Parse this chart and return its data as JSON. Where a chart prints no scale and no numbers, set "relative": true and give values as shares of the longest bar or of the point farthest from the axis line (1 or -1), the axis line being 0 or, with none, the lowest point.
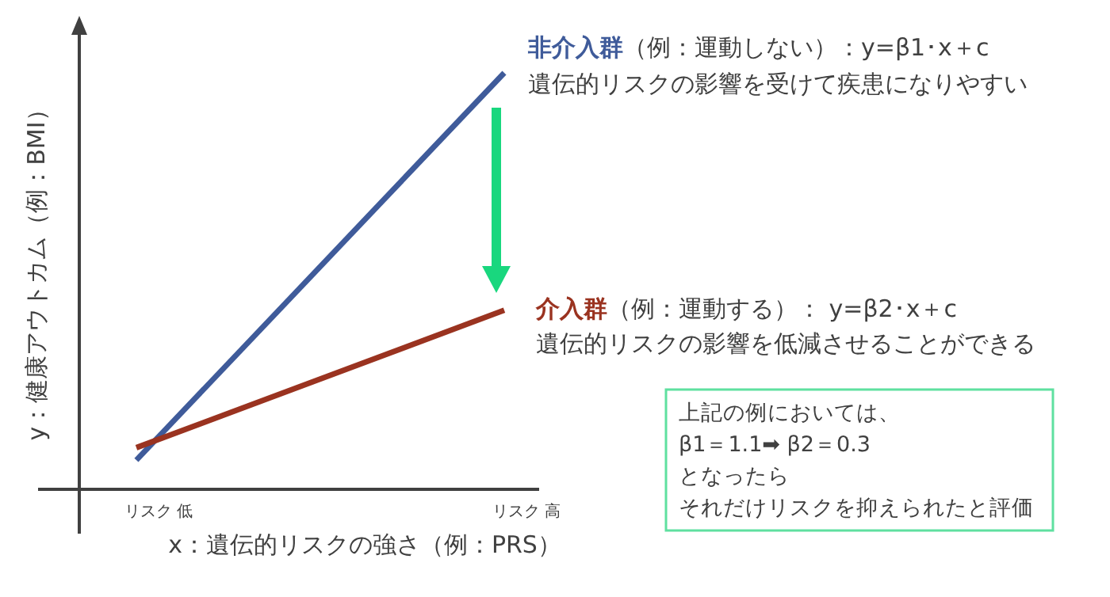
{
  "chart_data": {
    "type": "line",
    "relative": true,
    "categories": [
      "リスク 低",
      "リスク 高"
    ],
    "xlabel": "x：遺伝的リスクの強さ（例：PRS）",
    "ylabel": "y：健康アウトカム（例：BMI）",
    "series": [
      {
        "name": "非介入群",
        "color": "#3f5b9a",
        "values": [
          0.07,
          1
        ]
      },
      {
        "name": "介入群",
        "color": "#9a3320",
        "values": [
          0.1,
          0.43
        ]
      }
    ],
    "annotations": [
      "（例：運動しない）：y=β1･x＋c",
      "遺伝的リスクの影響を受けて疾患になりやすい",
      "（例：運動する）： y=β2･x＋c",
      "遺伝的リスクの影響を低減させることができる",
      "上記の例においては、",
      "β1＝1.1➡ β2＝0.3",
      "となったら",
      "それだけリスクを抑えられたと評価"
    ],
    "marker": "none",
    "line_style": "solid"
  }
}
